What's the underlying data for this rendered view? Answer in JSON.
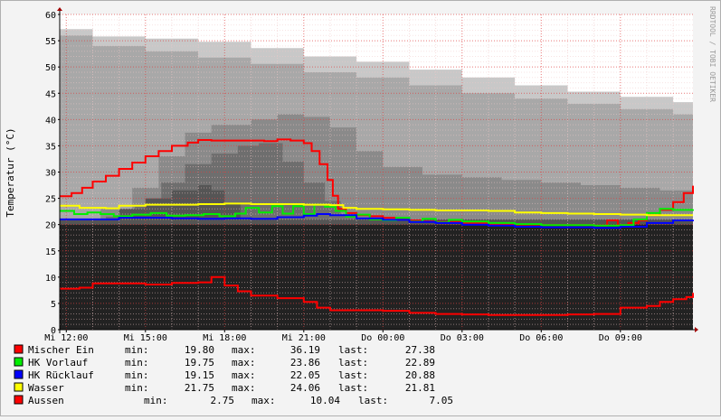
{
  "chart_data": {
    "type": "line",
    "title": "",
    "ylabel": "Temperatur (°C)",
    "watermark": "RRDTOOL / TOBI OETIKER",
    "ylim": [
      0,
      60
    ],
    "y_ticks": [
      0,
      5,
      10,
      15,
      20,
      25,
      30,
      35,
      40,
      45,
      50,
      55,
      60
    ],
    "xlim": [
      11.75,
      35.75
    ],
    "x_ticks": [
      {
        "t": 12,
        "label": "Mi 12:00"
      },
      {
        "t": 15,
        "label": "Mi 15:00"
      },
      {
        "t": 18,
        "label": "Mi 18:00"
      },
      {
        "t": 21,
        "label": "Mi 21:00"
      },
      {
        "t": 24,
        "label": "Do 00:00"
      },
      {
        "t": 27,
        "label": "Do 03:00"
      },
      {
        "t": 30,
        "label": "Do 06:00"
      },
      {
        "t": 33,
        "label": "Do 09:00"
      }
    ],
    "colors": {
      "plot_bg": "#ffffff",
      "grid_major": "#e04040",
      "grid_minor": "#f0c8c8",
      "axis": "#000000",
      "base_fill": "#222222",
      "band_light": "#c8c8c8",
      "band_mid": "#a8a8a8",
      "band_dark1": "#8a8a8a",
      "band_dark2": "#6e6e6e",
      "band_dark3": "#555555"
    },
    "base_fill_level": 20,
    "background_bands": [
      {
        "color": "band_light",
        "points": [
          [
            11.75,
            57.2
          ],
          [
            13,
            55.8
          ],
          [
            15,
            55.4
          ],
          [
            17,
            54.8
          ],
          [
            19,
            53.6
          ],
          [
            21,
            52.0
          ],
          [
            23,
            51.0
          ],
          [
            25,
            49.5
          ],
          [
            27,
            48.0
          ],
          [
            29,
            46.5
          ],
          [
            31,
            45.3
          ],
          [
            33,
            44.3
          ],
          [
            35,
            43.3
          ],
          [
            35.75,
            43.0
          ]
        ]
      },
      {
        "color": "band_mid",
        "points": [
          [
            11.75,
            56.0
          ],
          [
            13,
            54.0
          ],
          [
            15,
            53.0
          ],
          [
            17,
            51.8
          ],
          [
            19,
            50.6
          ],
          [
            21,
            49.0
          ],
          [
            23,
            48.0
          ],
          [
            25,
            46.5
          ],
          [
            27,
            45.0
          ],
          [
            29,
            44.0
          ],
          [
            31,
            43.0
          ],
          [
            33,
            42.0
          ],
          [
            35,
            41.0
          ],
          [
            35.75,
            40.5
          ]
        ]
      },
      {
        "color": "band_dark1",
        "points": [
          [
            11.75,
            21
          ],
          [
            13.3,
            23
          ],
          [
            14.5,
            27
          ],
          [
            15.5,
            33
          ],
          [
            16.5,
            37.5
          ],
          [
            17.5,
            39
          ],
          [
            19,
            40
          ],
          [
            20,
            41
          ],
          [
            21,
            40.5
          ],
          [
            22,
            38.5
          ],
          [
            23,
            34
          ],
          [
            24,
            31
          ],
          [
            25.5,
            29.5
          ],
          [
            27,
            29
          ],
          [
            28.5,
            28.5
          ],
          [
            30,
            28
          ],
          [
            31.5,
            27.5
          ],
          [
            33,
            27
          ],
          [
            34.5,
            26.5
          ],
          [
            35.75,
            26
          ]
        ]
      },
      {
        "color": "band_dark2",
        "points": [
          [
            11.75,
            21
          ],
          [
            13.5,
            21.5
          ],
          [
            14.6,
            23.5
          ],
          [
            15.6,
            28
          ],
          [
            16.5,
            31.5
          ],
          [
            17.5,
            33.5
          ],
          [
            18.5,
            35
          ],
          [
            19.3,
            35.5
          ],
          [
            20.2,
            32
          ],
          [
            21,
            28
          ],
          [
            21.8,
            24.5
          ],
          [
            22.4,
            22
          ],
          [
            23,
            21
          ],
          [
            35.75,
            21
          ]
        ]
      },
      {
        "color": "band_dark3",
        "points": [
          [
            11.75,
            21
          ],
          [
            13.6,
            21
          ],
          [
            14,
            23
          ],
          [
            15,
            25
          ],
          [
            16,
            26.5
          ],
          [
            17,
            27.5
          ],
          [
            17.5,
            26.5
          ],
          [
            18,
            24
          ],
          [
            18.6,
            21
          ],
          [
            35.75,
            21
          ]
        ]
      }
    ],
    "series": [
      {
        "name": "Mischer Ein",
        "color": "#ff0000",
        "values": [
          [
            11.75,
            25.4
          ],
          [
            12.2,
            26.0
          ],
          [
            12.6,
            27.0
          ],
          [
            13.0,
            28.2
          ],
          [
            13.5,
            29.3
          ],
          [
            14.0,
            30.6
          ],
          [
            14.5,
            31.8
          ],
          [
            15.0,
            33.0
          ],
          [
            15.5,
            34.0
          ],
          [
            16.0,
            35.0
          ],
          [
            16.6,
            35.6
          ],
          [
            17.0,
            36.1
          ],
          [
            17.5,
            36.0
          ],
          [
            18.5,
            36.0
          ],
          [
            19.5,
            35.9
          ],
          [
            20.0,
            36.2
          ],
          [
            20.5,
            36.0
          ],
          [
            21.0,
            35.5
          ],
          [
            21.3,
            34.0
          ],
          [
            21.6,
            31.5
          ],
          [
            21.9,
            28.5
          ],
          [
            22.1,
            25.5
          ],
          [
            22.3,
            23.0
          ],
          [
            22.6,
            22.2
          ],
          [
            23.0,
            21.8
          ],
          [
            23.5,
            21.6
          ],
          [
            24.0,
            21.3
          ],
          [
            24.5,
            21.0
          ],
          [
            25.0,
            20.8
          ],
          [
            25.5,
            20.6
          ],
          [
            26.0,
            20.5
          ],
          [
            27.0,
            20.3
          ],
          [
            28.0,
            20.1
          ],
          [
            29.0,
            20.0
          ],
          [
            30.0,
            19.9
          ],
          [
            31.0,
            19.9
          ],
          [
            32.0,
            19.8
          ],
          [
            32.5,
            20.8
          ],
          [
            32.9,
            19.9
          ],
          [
            33.3,
            20.3
          ],
          [
            33.7,
            20.8
          ],
          [
            34.0,
            21.8
          ],
          [
            34.5,
            22.8
          ],
          [
            35.0,
            24.3
          ],
          [
            35.4,
            26.0
          ],
          [
            35.75,
            27.4
          ]
        ]
      },
      {
        "name": "HK Vorlauf",
        "color": "#00ee00",
        "values": [
          [
            11.75,
            22.6
          ],
          [
            12.3,
            22.0
          ],
          [
            12.8,
            22.3
          ],
          [
            13.3,
            22.0
          ],
          [
            13.8,
            21.6
          ],
          [
            14.5,
            21.9
          ],
          [
            15.2,
            22.2
          ],
          [
            15.8,
            21.7
          ],
          [
            16.5,
            21.8
          ],
          [
            17.2,
            22.0
          ],
          [
            17.8,
            21.6
          ],
          [
            18.4,
            22.1
          ],
          [
            18.8,
            23.2
          ],
          [
            19.3,
            22.3
          ],
          [
            19.8,
            23.5
          ],
          [
            20.2,
            22.1
          ],
          [
            20.6,
            23.5
          ],
          [
            21.0,
            22.0
          ],
          [
            21.4,
            23.8
          ],
          [
            21.8,
            23.4
          ],
          [
            22.2,
            22.6
          ],
          [
            22.6,
            21.5
          ],
          [
            23.0,
            21.9
          ],
          [
            23.5,
            21.0
          ],
          [
            24.0,
            20.8
          ],
          [
            24.5,
            21.3
          ],
          [
            25.0,
            20.6
          ],
          [
            25.5,
            21.1
          ],
          [
            26.0,
            20.4
          ],
          [
            26.5,
            20.9
          ],
          [
            27.0,
            20.6
          ],
          [
            28.0,
            20.3
          ],
          [
            29.0,
            20.1
          ],
          [
            30.0,
            19.9
          ],
          [
            31.0,
            19.9
          ],
          [
            32.0,
            19.8
          ],
          [
            33.0,
            19.9
          ],
          [
            33.5,
            21.0
          ],
          [
            34.0,
            22.2
          ],
          [
            34.5,
            23.0
          ],
          [
            35.0,
            22.8
          ],
          [
            35.75,
            22.9
          ]
        ]
      },
      {
        "name": "HK Rücklauf",
        "color": "#0000ff",
        "values": [
          [
            11.75,
            21.0
          ],
          [
            13.0,
            21.0
          ],
          [
            14.0,
            21.3
          ],
          [
            15.0,
            21.3
          ],
          [
            16.0,
            21.2
          ],
          [
            17.0,
            21.1
          ],
          [
            18.0,
            21.2
          ],
          [
            19.0,
            21.1
          ],
          [
            20.0,
            21.4
          ],
          [
            21.0,
            21.7
          ],
          [
            21.5,
            22.0
          ],
          [
            22.0,
            21.8
          ],
          [
            23.0,
            21.2
          ],
          [
            24.0,
            20.9
          ],
          [
            25.0,
            20.5
          ],
          [
            26.0,
            20.3
          ],
          [
            27.0,
            20.0
          ],
          [
            28.0,
            19.8
          ],
          [
            29.0,
            19.6
          ],
          [
            30.0,
            19.5
          ],
          [
            31.0,
            19.5
          ],
          [
            32.0,
            19.4
          ],
          [
            33.0,
            19.6
          ],
          [
            34.0,
            20.3
          ],
          [
            35.0,
            20.8
          ],
          [
            35.75,
            20.9
          ]
        ]
      },
      {
        "name": "Wasser",
        "color": "#ffff00",
        "values": [
          [
            11.75,
            23.6
          ],
          [
            12.5,
            23.2
          ],
          [
            13.5,
            23.1
          ],
          [
            14.0,
            23.6
          ],
          [
            15.0,
            23.8
          ],
          [
            16.0,
            23.8
          ],
          [
            17.0,
            23.9
          ],
          [
            18.0,
            24.0
          ],
          [
            19.0,
            23.9
          ],
          [
            20.0,
            23.9
          ],
          [
            21.0,
            23.8
          ],
          [
            22.0,
            23.7
          ],
          [
            22.5,
            23.2
          ],
          [
            23.0,
            23.0
          ],
          [
            24.0,
            22.9
          ],
          [
            25.0,
            22.8
          ],
          [
            26.0,
            22.7
          ],
          [
            27.0,
            22.7
          ],
          [
            28.0,
            22.6
          ],
          [
            29.0,
            22.3
          ],
          [
            30.0,
            22.2
          ],
          [
            31.0,
            22.1
          ],
          [
            32.0,
            22.0
          ],
          [
            33.0,
            21.9
          ],
          [
            34.0,
            21.8
          ],
          [
            35.0,
            21.8
          ],
          [
            35.75,
            21.8
          ]
        ]
      },
      {
        "name": "Aussen",
        "color": "#ff0000",
        "values": [
          [
            11.75,
            7.8
          ],
          [
            12.5,
            8.0
          ],
          [
            13.0,
            8.8
          ],
          [
            14.0,
            8.8
          ],
          [
            15.0,
            8.6
          ],
          [
            16.0,
            8.9
          ],
          [
            17.0,
            9.0
          ],
          [
            17.5,
            10.0
          ],
          [
            18.0,
            8.4
          ],
          [
            18.5,
            7.3
          ],
          [
            19.0,
            6.5
          ],
          [
            20.0,
            6.0
          ],
          [
            21.0,
            5.3
          ],
          [
            21.5,
            4.2
          ],
          [
            22.0,
            3.7
          ],
          [
            23.0,
            3.7
          ],
          [
            24.0,
            3.6
          ],
          [
            25.0,
            3.2
          ],
          [
            26.0,
            3.0
          ],
          [
            27.0,
            2.9
          ],
          [
            28.0,
            2.8
          ],
          [
            29.0,
            2.8
          ],
          [
            30.0,
            2.8
          ],
          [
            31.0,
            2.9
          ],
          [
            32.0,
            3.0
          ],
          [
            33.0,
            4.2
          ],
          [
            34.0,
            4.5
          ],
          [
            34.5,
            5.3
          ],
          [
            35.0,
            5.8
          ],
          [
            35.5,
            6.2
          ],
          [
            35.75,
            7.0
          ]
        ]
      }
    ],
    "legend": [
      {
        "name": "Mischer Ein",
        "color": "#ff0000",
        "min_label": "min:",
        "min": "19.80",
        "max_label": "max:",
        "max": "36.19",
        "last_label": "last:",
        "last": "27.38"
      },
      {
        "name": "HK Vorlauf",
        "color": "#00ee00",
        "min_label": "min:",
        "min": "19.75",
        "max_label": "max:",
        "max": "23.86",
        "last_label": "last:",
        "last": "22.89"
      },
      {
        "name": "HK Rücklauf",
        "color": "#0000ff",
        "min_label": "min:",
        "min": "19.15",
        "max_label": "max:",
        "max": "22.05",
        "last_label": "last:",
        "last": "20.88"
      },
      {
        "name": "Wasser",
        "color": "#ffff00",
        "min_label": "min:",
        "min": "21.75",
        "max_label": "max:",
        "max": "24.06",
        "last_label": "last:",
        "last": "21.81"
      },
      {
        "name": "Aussen",
        "color": "#ff0000",
        "min_label": "min:",
        "min": "2.75",
        "max_label": "max:",
        "max": "10.04",
        "last_label": "last:",
        "last": "7.05"
      }
    ]
  }
}
